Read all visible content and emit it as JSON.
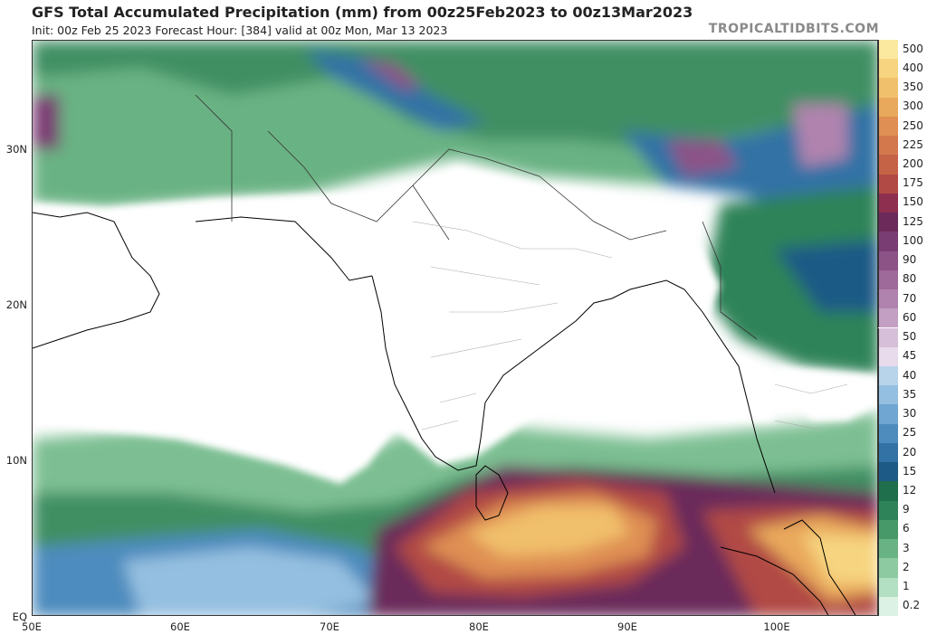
{
  "header": {
    "title": "GFS Total Accumulated Precipitation (mm) from 00z25Feb2023 to 00z13Mar2023",
    "subtitle": "Init: 00z Feb 25 2023   Forecast Hour: [384]   valid at 00z Mon, Mar 13 2023",
    "brand": "TROPICALTIDBITS.COM"
  },
  "axes": {
    "lat_labels": [
      "30N",
      "20N",
      "10N",
      "EQ"
    ],
    "lon_labels": [
      "50E",
      "60E",
      "70E",
      "80E",
      "90E",
      "100E"
    ]
  },
  "colorbar": {
    "levels": [
      {
        "label": "500",
        "color": "#fbe9a0"
      },
      {
        "label": "400",
        "color": "#f7d580"
      },
      {
        "label": "350",
        "color": "#f1c06c"
      },
      {
        "label": "300",
        "color": "#e9a95c"
      },
      {
        "label": "250",
        "color": "#df8f53"
      },
      {
        "label": "225",
        "color": "#d3784c"
      },
      {
        "label": "200",
        "color": "#c56346"
      },
      {
        "label": "175",
        "color": "#b14a45"
      },
      {
        "label": "150",
        "color": "#8f2f4f"
      },
      {
        "label": "125",
        "color": "#6b2a5a"
      },
      {
        "label": "100",
        "color": "#7a3d73"
      },
      {
        "label": "90",
        "color": "#8c5387"
      },
      {
        "label": "80",
        "color": "#9d6a9a"
      },
      {
        "label": "70",
        "color": "#b083ae"
      },
      {
        "label": "60",
        "color": "#c39fc3"
      },
      {
        "label": "50",
        "color": "#d6bfd8"
      },
      {
        "label": "45",
        "color": "#e8dbec"
      },
      {
        "label": "40",
        "color": "#b7d4ea"
      },
      {
        "label": "35",
        "color": "#94bfe0"
      },
      {
        "label": "30",
        "color": "#6fa6d2"
      },
      {
        "label": "25",
        "color": "#4e8cbe"
      },
      {
        "label": "20",
        "color": "#3372a5"
      },
      {
        "label": "15",
        "color": "#1e5a86"
      },
      {
        "label": "12",
        "color": "#1f6e4c"
      },
      {
        "label": "9",
        "color": "#2f8358"
      },
      {
        "label": "6",
        "color": "#47996a"
      },
      {
        "label": "3",
        "color": "#69b283"
      },
      {
        "label": "2",
        "color": "#8dcaa1"
      },
      {
        "label": "1",
        "color": "#b3e0c2"
      },
      {
        "label": "0.2",
        "color": "#dcf2e4"
      }
    ]
  }
}
